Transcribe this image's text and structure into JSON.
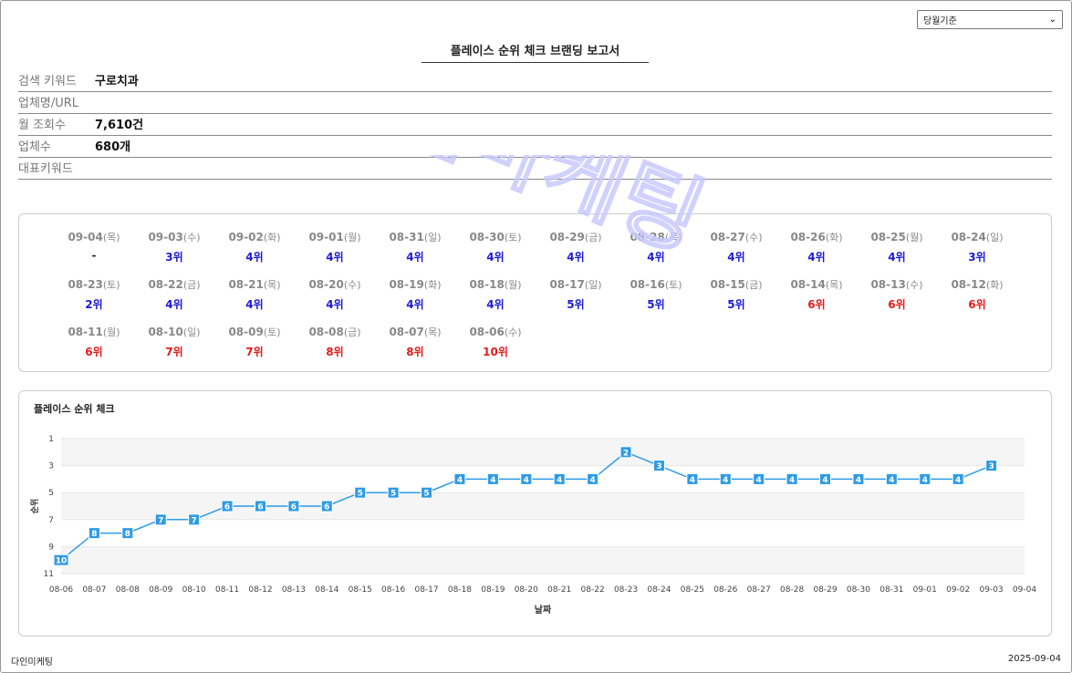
{
  "header": {
    "period_select": "당월기준",
    "report_title": "플레이스 순위 체크 브랜딩 보고서"
  },
  "info": [
    {
      "label": "검색 키워드",
      "value": "구로치과"
    },
    {
      "label": "업체명/URL",
      "value": ""
    },
    {
      "label": "월 조회수",
      "value": "7,610건"
    },
    {
      "label": "업체수",
      "value": "680개"
    },
    {
      "label": "대표키워드",
      "value": ""
    }
  ],
  "ranks": [
    {
      "date": "09-04",
      "dow": "(목)",
      "rank": "-",
      "tone": "none"
    },
    {
      "date": "09-03",
      "dow": "(수)",
      "rank": "3위",
      "tone": "blue"
    },
    {
      "date": "09-02",
      "dow": "(화)",
      "rank": "4위",
      "tone": "blue"
    },
    {
      "date": "09-01",
      "dow": "(월)",
      "rank": "4위",
      "tone": "blue"
    },
    {
      "date": "08-31",
      "dow": "(일)",
      "rank": "4위",
      "tone": "blue"
    },
    {
      "date": "08-30",
      "dow": "(토)",
      "rank": "4위",
      "tone": "blue"
    },
    {
      "date": "08-29",
      "dow": "(금)",
      "rank": "4위",
      "tone": "blue"
    },
    {
      "date": "08-28",
      "dow": "(목)",
      "rank": "4위",
      "tone": "blue"
    },
    {
      "date": "08-27",
      "dow": "(수)",
      "rank": "4위",
      "tone": "blue"
    },
    {
      "date": "08-26",
      "dow": "(화)",
      "rank": "4위",
      "tone": "blue"
    },
    {
      "date": "08-25",
      "dow": "(월)",
      "rank": "4위",
      "tone": "blue"
    },
    {
      "date": "08-24",
      "dow": "(일)",
      "rank": "3위",
      "tone": "blue"
    },
    {
      "date": "08-23",
      "dow": "(토)",
      "rank": "2위",
      "tone": "blue"
    },
    {
      "date": "08-22",
      "dow": "(금)",
      "rank": "4위",
      "tone": "blue"
    },
    {
      "date": "08-21",
      "dow": "(목)",
      "rank": "4위",
      "tone": "blue"
    },
    {
      "date": "08-20",
      "dow": "(수)",
      "rank": "4위",
      "tone": "blue"
    },
    {
      "date": "08-19",
      "dow": "(화)",
      "rank": "4위",
      "tone": "blue"
    },
    {
      "date": "08-18",
      "dow": "(월)",
      "rank": "4위",
      "tone": "blue"
    },
    {
      "date": "08-17",
      "dow": "(일)",
      "rank": "5위",
      "tone": "blue"
    },
    {
      "date": "08-16",
      "dow": "(토)",
      "rank": "5위",
      "tone": "blue"
    },
    {
      "date": "08-15",
      "dow": "(금)",
      "rank": "5위",
      "tone": "blue"
    },
    {
      "date": "08-14",
      "dow": "(목)",
      "rank": "6위",
      "tone": "red"
    },
    {
      "date": "08-13",
      "dow": "(수)",
      "rank": "6위",
      "tone": "red"
    },
    {
      "date": "08-12",
      "dow": "(화)",
      "rank": "6위",
      "tone": "red"
    },
    {
      "date": "08-11",
      "dow": "(월)",
      "rank": "6위",
      "tone": "red"
    },
    {
      "date": "08-10",
      "dow": "(일)",
      "rank": "7위",
      "tone": "red"
    },
    {
      "date": "08-09",
      "dow": "(토)",
      "rank": "7위",
      "tone": "red"
    },
    {
      "date": "08-08",
      "dow": "(금)",
      "rank": "8위",
      "tone": "red"
    },
    {
      "date": "08-07",
      "dow": "(목)",
      "rank": "8위",
      "tone": "red"
    },
    {
      "date": "08-06",
      "dow": "(수)",
      "rank": "10위",
      "tone": "red"
    }
  ],
  "colors": {
    "rank_good": "#1a1adb",
    "rank_bad": "#e51c1c",
    "line": "#2e9be6",
    "band": "#f5f5f5"
  },
  "chart_data": {
    "type": "line",
    "title": "플레이스 순위 체크",
    "xlabel": "날짜",
    "ylabel": "순위",
    "y_reversed": true,
    "ylim": [
      1,
      11
    ],
    "y_ticks": [
      1,
      3,
      5,
      7,
      9,
      11
    ],
    "categories": [
      "08-06",
      "08-07",
      "08-08",
      "08-09",
      "08-10",
      "08-11",
      "08-12",
      "08-13",
      "08-14",
      "08-15",
      "08-16",
      "08-17",
      "08-18",
      "08-19",
      "08-20",
      "08-21",
      "08-22",
      "08-23",
      "08-24",
      "08-25",
      "08-26",
      "08-27",
      "08-28",
      "08-29",
      "08-30",
      "08-31",
      "09-01",
      "09-02",
      "09-03",
      "09-04"
    ],
    "series": [
      {
        "values": [
          10,
          8,
          8,
          7,
          7,
          6,
          6,
          6,
          6,
          5,
          5,
          5,
          4,
          4,
          4,
          4,
          4,
          2,
          3,
          4,
          4,
          4,
          4,
          4,
          4,
          4,
          4,
          4,
          3,
          null
        ]
      }
    ],
    "grid": true
  },
  "footer": {
    "company": "다인미케팅",
    "date": "2025-09-04"
  },
  "watermark": "다인마케팅"
}
